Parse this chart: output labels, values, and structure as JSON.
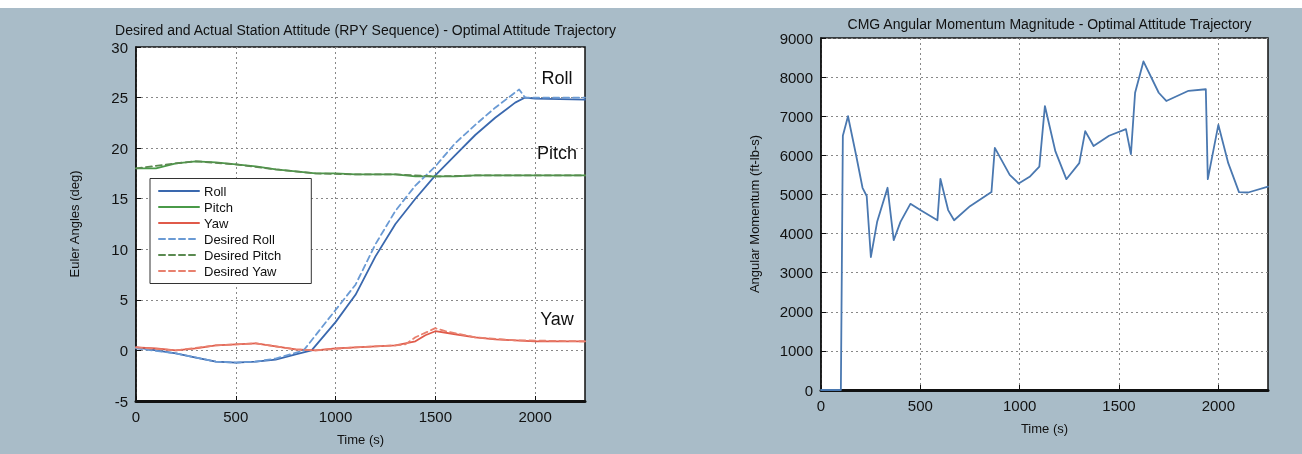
{
  "chart_data": [
    {
      "type": "line",
      "title": "Desired and Actual Station Attitude (RPY Sequence) - Optimal Attitude Trajectory",
      "xlabel": "Time (s)",
      "ylabel": "Euler Angles (deg)",
      "xlim": [
        0,
        2250
      ],
      "xticks": [
        0,
        500,
        1000,
        1500,
        2000
      ],
      "ylim": [
        -5,
        30
      ],
      "yticks": [
        -5,
        0,
        5,
        10,
        15,
        20,
        25,
        30
      ],
      "grid": true,
      "legend": "left",
      "marker": "none",
      "series": [
        {
          "name": "Roll",
          "color": "#3a68ae",
          "line_style": "solid",
          "x": [
            0,
            100,
            200,
            300,
            400,
            500,
            600,
            700,
            800,
            880,
            1000,
            1100,
            1200,
            1300,
            1400,
            1500,
            1600,
            1700,
            1800,
            1900,
            1950,
            2000,
            2250
          ],
          "values": [
            0.3,
            0,
            -0.3,
            -0.7,
            -1.1,
            -1.2,
            -1.1,
            -0.9,
            -0.4,
            0,
            2.8,
            5.5,
            9.3,
            12.5,
            15,
            17.3,
            19.3,
            21.3,
            23,
            24.5,
            25,
            24.9,
            24.8
          ]
        },
        {
          "name": "Pitch",
          "color": "#4a9a48",
          "line_style": "solid",
          "x": [
            0,
            100,
            200,
            300,
            400,
            500,
            600,
            700,
            800,
            900,
            1000,
            1100,
            1200,
            1300,
            1400,
            1500,
            1600,
            1700,
            2250
          ],
          "values": [
            18,
            18,
            18.5,
            18.7,
            18.6,
            18.4,
            18.2,
            17.9,
            17.7,
            17.5,
            17.5,
            17.4,
            17.4,
            17.4,
            17.2,
            17.2,
            17.2,
            17.3,
            17.3
          ]
        },
        {
          "name": "Yaw",
          "color": "#e05a4a",
          "line_style": "solid",
          "x": [
            0,
            100,
            200,
            300,
            400,
            500,
            600,
            700,
            800,
            900,
            1000,
            1100,
            1200,
            1300,
            1400,
            1450,
            1500,
            1600,
            1700,
            1800,
            1900,
            2000,
            2250
          ],
          "values": [
            0.3,
            0.2,
            0,
            0.2,
            0.5,
            0.6,
            0.7,
            0.4,
            0.1,
            0,
            0.2,
            0.3,
            0.4,
            0.5,
            0.9,
            1.5,
            1.9,
            1.6,
            1.3,
            1.1,
            1,
            0.9,
            0.9
          ]
        },
        {
          "name": "Desired Roll",
          "color": "#6a9ad4",
          "line_style": "dashed",
          "x": [
            0,
            200,
            400,
            500,
            600,
            700,
            840,
            1000,
            1100,
            1200,
            1300,
            1400,
            1500,
            1600,
            1700,
            1800,
            1920,
            1950,
            2250
          ],
          "values": [
            0.2,
            -0.3,
            -1.1,
            -1.2,
            -1.1,
            -0.8,
            0,
            4,
            6.5,
            10.5,
            13.8,
            16.3,
            18.2,
            20.5,
            22.3,
            24,
            25.8,
            25,
            25
          ]
        },
        {
          "name": "Desired Pitch",
          "color": "#5a8a50",
          "line_style": "dashed",
          "x": [
            0,
            200,
            300,
            500,
            700,
            900,
            1100,
            1300,
            1500,
            1700,
            2250
          ],
          "values": [
            18,
            18.5,
            18.7,
            18.4,
            17.9,
            17.5,
            17.4,
            17.4,
            17.2,
            17.3,
            17.3
          ]
        },
        {
          "name": "Desired Yaw",
          "color": "#e8806e",
          "line_style": "dashed",
          "x": [
            0,
            200,
            400,
            600,
            800,
            900,
            1100,
            1300,
            1350,
            1400,
            1500,
            1550,
            1700,
            1900,
            2250
          ],
          "values": [
            0.3,
            0,
            0.5,
            0.7,
            0.1,
            0,
            0.3,
            0.5,
            0.6,
            1.3,
            2.2,
            1.9,
            1.3,
            1,
            0.9
          ]
        }
      ],
      "annotations": [
        "Roll",
        "Pitch",
        "Yaw"
      ]
    },
    {
      "type": "line",
      "title": "CMG Angular Momentum Magnitude - Optimal Attitude Trajectory",
      "xlabel": "Time (s)",
      "ylabel": "Angular Momentum (ft-lb-s)",
      "xlim": [
        0,
        2250
      ],
      "xticks": [
        0,
        500,
        1000,
        1500,
        2000
      ],
      "ylim": [
        0,
        9000
      ],
      "yticks": [
        0,
        1000,
        2000,
        3000,
        4000,
        5000,
        6000,
        7000,
        8000,
        9000
      ],
      "grid": true,
      "marker": "none",
      "series": [
        {
          "color": "#4a78b0",
          "line_style": "solid",
          "x": [
            0,
            100,
            105,
            110,
            136,
            178,
            209,
            230,
            251,
            283,
            335,
            366,
            400,
            450,
            500,
            586,
            601,
            640,
            670,
            750,
            858,
            875,
            950,
            995,
            1050,
            1099,
            1127,
            1180,
            1235,
            1300,
            1330,
            1372,
            1450,
            1535,
            1560,
            1581,
            1623,
            1700,
            1738,
            1850,
            1937,
            1947,
            2000,
            2050,
            2104,
            2150,
            2250
          ],
          "values": [
            0,
            0,
            3200,
            6500,
            7000,
            5970,
            5170,
            4960,
            3400,
            4310,
            5170,
            3830,
            4300,
            4760,
            4600,
            4340,
            5400,
            4600,
            4340,
            4700,
            5060,
            6190,
            5500,
            5280,
            5450,
            5710,
            7260,
            6100,
            5390,
            5800,
            6620,
            6240,
            6500,
            6670,
            6030,
            7600,
            8400,
            7600,
            7390,
            7650,
            7690,
            5390,
            6780,
            5800,
            5060,
            5050,
            5200
          ]
        }
      ]
    }
  ]
}
